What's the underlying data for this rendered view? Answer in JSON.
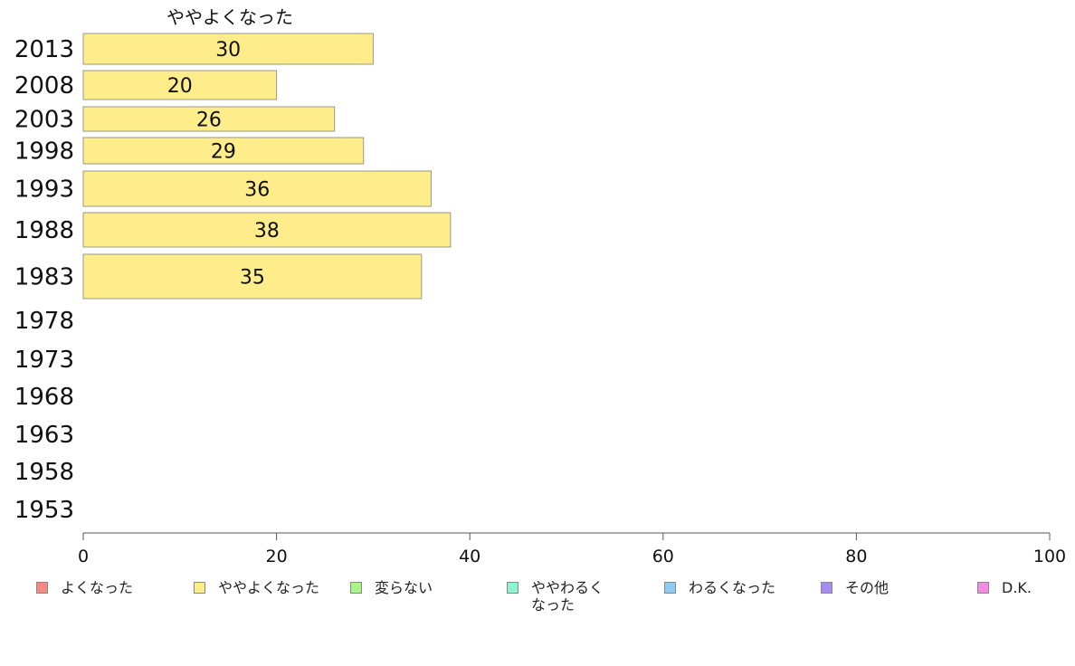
{
  "chart_data": {
    "type": "bar",
    "orientation": "horizontal",
    "title": "ややよくなった",
    "categories": [
      "2013",
      "2008",
      "2003",
      "1998",
      "1993",
      "1988",
      "1983",
      "1978",
      "1973",
      "1968",
      "1963",
      "1958",
      "1953"
    ],
    "series": [
      {
        "name": "ややよくなった",
        "values": [
          30,
          20,
          26,
          29,
          36,
          38,
          35,
          null,
          null,
          null,
          null,
          null,
          null
        ]
      }
    ],
    "xlim": [
      0,
      100
    ],
    "x_ticks": [
      0,
      20,
      40,
      60,
      80,
      100
    ],
    "grid": false,
    "legend_position": "bottom",
    "bar_color": "#ffec8b"
  },
  "legend": [
    {
      "label": "よくなった",
      "color": "#f28b82"
    },
    {
      "label": "ややよくなった",
      "color": "#ffec8b"
    },
    {
      "label": "変らない",
      "color": "#a8f58a"
    },
    {
      "label": "ややわるく\nなった",
      "color": "#8ff5cf"
    },
    {
      "label": "わるくなった",
      "color": "#8ecbf5"
    },
    {
      "label": "その他",
      "color": "#a78bf5"
    },
    {
      "label": "D.K.",
      "color": "#f58be0"
    }
  ]
}
